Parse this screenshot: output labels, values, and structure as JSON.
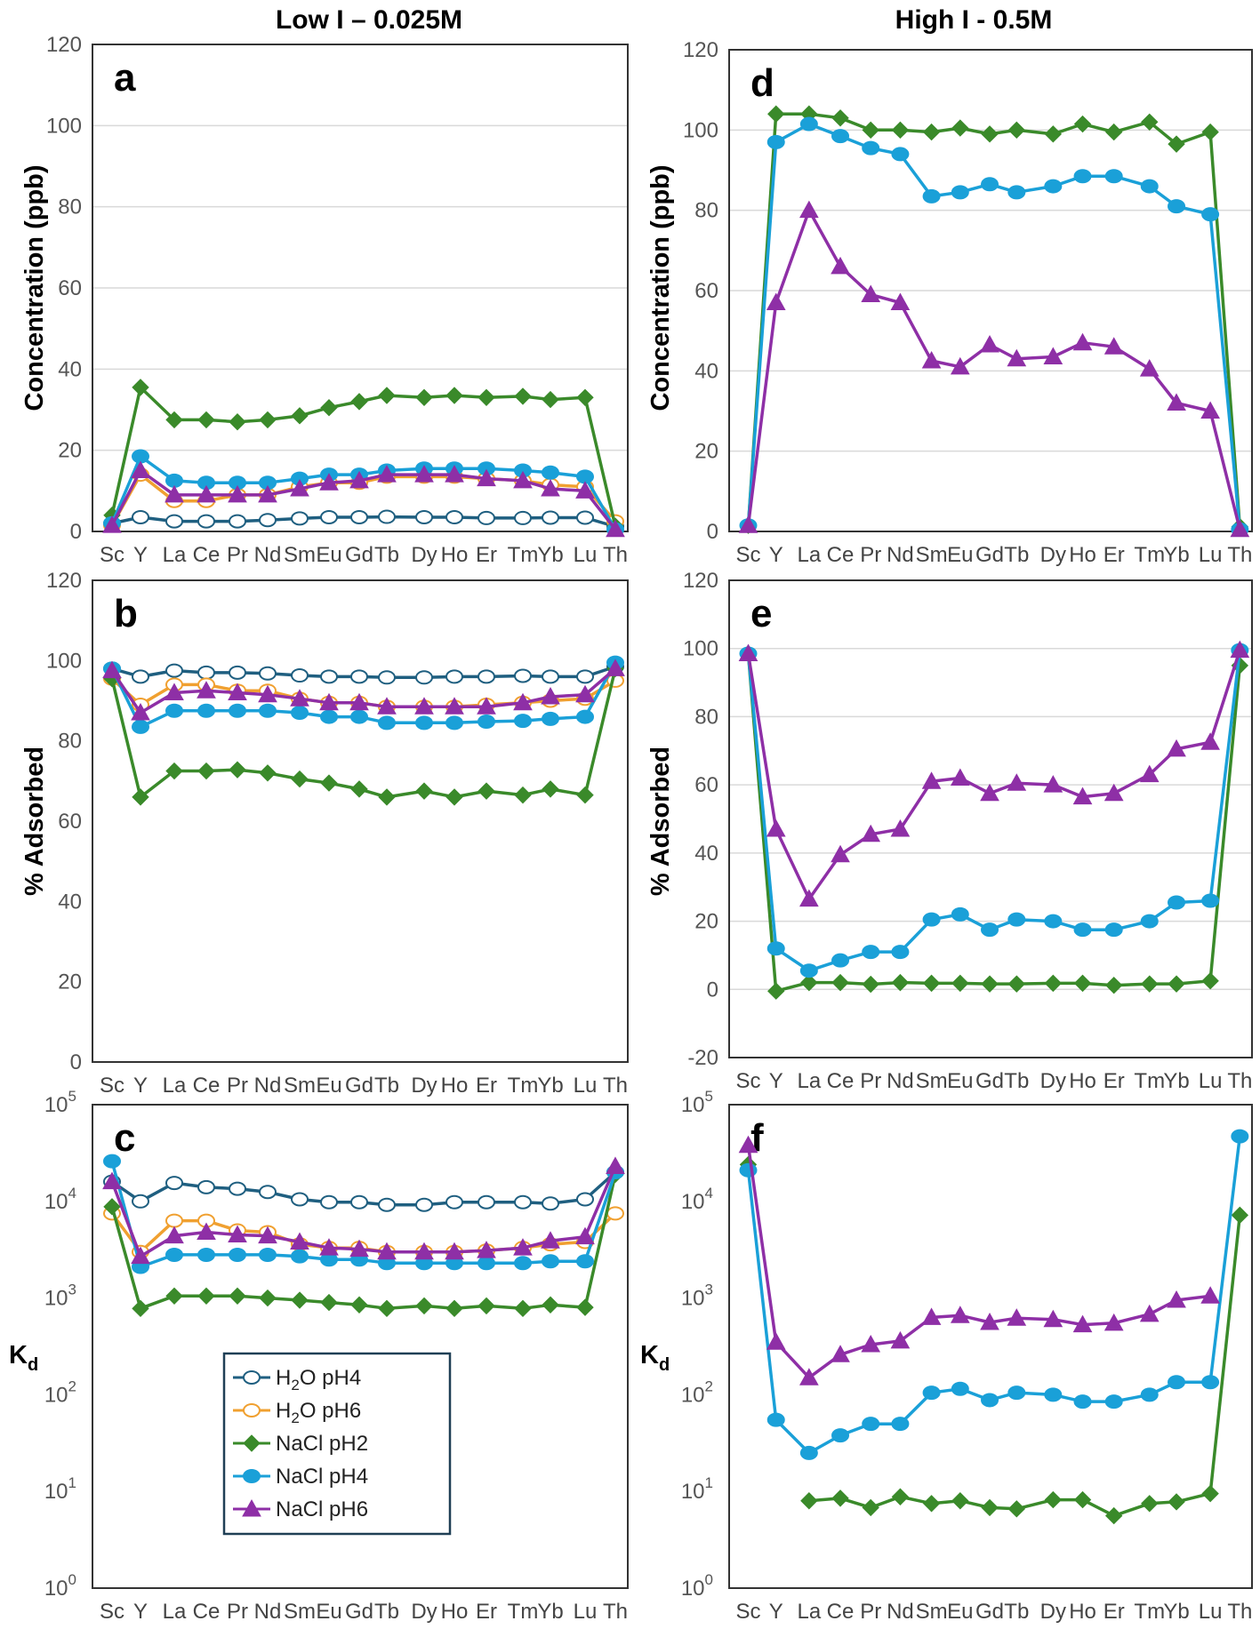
{
  "titles": {
    "left": "Low I – 0.025M",
    "right": "High I - 0.5M"
  },
  "elements": [
    "Sc",
    "Y",
    "La",
    "Ce",
    "Pr",
    "Nd",
    "Sm",
    "Eu",
    "Gd",
    "Tb",
    "Dy",
    "Ho",
    "Er",
    "Tm",
    "Yb",
    "Lu",
    "Th"
  ],
  "series_styles": [
    {
      "name": "H2O pH4",
      "line": "#1f5f80",
      "fill": "#ffffff",
      "marker": "circle-open"
    },
    {
      "name": "H2O pH6",
      "line": "#f0a030",
      "fill": "#ffffff",
      "marker": "circle-open"
    },
    {
      "name": "NaCl pH2",
      "line": "#3a8a2a",
      "fill": "#3a8a2a",
      "marker": "diamond"
    },
    {
      "name": "NaCl pH4",
      "line": "#1aa0d8",
      "fill": "#1aa0d8",
      "marker": "circle"
    },
    {
      "name": "NaCl pH6",
      "line": "#8e2fa6",
      "fill": "#8e2fa6",
      "marker": "triangle"
    }
  ],
  "legend": {
    "placement": "bottom-center of panel c",
    "entries": [
      {
        "pre": "H",
        "sub": "2",
        "post": "O pH4"
      },
      {
        "pre": "H",
        "sub": "2",
        "post": "O pH6"
      },
      {
        "pre": "NaCl pH2",
        "sub": "",
        "post": ""
      },
      {
        "pre": "NaCl pH4",
        "sub": "",
        "post": ""
      },
      {
        "pre": "NaCl pH6",
        "sub": "",
        "post": ""
      }
    ]
  },
  "chart_data": [
    {
      "panel": "a",
      "type": "line",
      "ylabel": "Concentration (ppb)",
      "ylim": [
        0,
        120
      ],
      "yticks": [
        "0",
        "20",
        "40",
        "60",
        "80",
        "100",
        "120"
      ],
      "grid": true,
      "series": [
        {
          "name": "H2O pH4",
          "values": [
            2,
            3.5,
            2.5,
            2.5,
            2.5,
            2.8,
            3.2,
            3.5,
            3.5,
            3.6,
            3.5,
            3.5,
            3.3,
            3.3,
            3.4,
            3.4,
            1.2
          ]
        },
        {
          "name": "H2O pH6",
          "values": [
            1.5,
            14,
            7.5,
            7.5,
            9,
            9,
            11,
            12,
            12,
            13.5,
            13.5,
            13.5,
            13,
            12.5,
            11.5,
            11,
            2.5
          ]
        },
        {
          "name": "NaCl pH2",
          "values": [
            4,
            35.5,
            27.5,
            27.5,
            27,
            27.5,
            28.5,
            30.5,
            32,
            33.5,
            33,
            33.5,
            33,
            33.3,
            32.5,
            33,
            1.3
          ]
        },
        {
          "name": "NaCl pH4",
          "values": [
            2,
            18.5,
            12.5,
            12,
            12,
            12,
            13,
            14,
            14,
            15,
            15.5,
            15.5,
            15.5,
            15,
            14.5,
            13.5,
            0.5
          ]
        },
        {
          "name": "NaCl pH6",
          "values": [
            1.5,
            15,
            9,
            9,
            9,
            9,
            10.5,
            12,
            12.5,
            14,
            14,
            14,
            13,
            12.5,
            10.5,
            10,
            0.5
          ]
        }
      ]
    },
    {
      "panel": "b",
      "type": "line",
      "ylabel": "% Adsorbed",
      "ylim": [
        0,
        120
      ],
      "yticks": [
        "0",
        "20",
        "40",
        "60",
        "80",
        "100",
        "120"
      ],
      "grid": false,
      "series": [
        {
          "name": "H2O pH4",
          "values": [
            98,
            96,
            97.5,
            97,
            97,
            96.8,
            96.3,
            96,
            96,
            95.8,
            95.8,
            96,
            96,
            96.2,
            96,
            96,
            98.5
          ]
        },
        {
          "name": "H2O pH6",
          "values": [
            95.5,
            89,
            94,
            94,
            92.5,
            92.5,
            90.5,
            89.5,
            89.5,
            88.5,
            88.5,
            88.5,
            89,
            89.5,
            90,
            90.5,
            95
          ]
        },
        {
          "name": "NaCl pH2",
          "values": [
            95.5,
            66,
            72.5,
            72.5,
            72.8,
            72,
            70.5,
            69.5,
            68,
            66,
            67.5,
            66,
            67.5,
            66.5,
            68,
            66.5,
            98
          ]
        },
        {
          "name": "NaCl pH4",
          "values": [
            98,
            83.5,
            87.5,
            87.5,
            87.5,
            87.5,
            87,
            86,
            86,
            84.5,
            84.5,
            84.5,
            84.8,
            85,
            85.5,
            86,
            99.5
          ]
        },
        {
          "name": "NaCl pH6",
          "values": [
            97.5,
            87,
            92,
            92.5,
            92,
            91.5,
            90.5,
            89.5,
            89.5,
            88.5,
            88.5,
            88.5,
            88.5,
            89.5,
            91,
            91.5,
            98
          ]
        }
      ]
    },
    {
      "panel": "c",
      "type": "line",
      "ylabel": "Kd",
      "yscale": "log",
      "ylim": [
        1,
        100000
      ],
      "yticks": [
        "10^0",
        "10^1",
        "10^2",
        "10^3",
        "10^4",
        "10^5"
      ],
      "grid": false,
      "series": [
        {
          "name": "H2O pH4",
          "values": [
            16000,
            10000,
            15500,
            14000,
            13500,
            12500,
            10500,
            9800,
            9800,
            9200,
            9200,
            9800,
            9800,
            9800,
            9500,
            10500,
            20000
          ]
        },
        {
          "name": "H2O pH6",
          "values": [
            7500,
            3000,
            6300,
            6300,
            5000,
            4800,
            3600,
            3300,
            3300,
            3000,
            3000,
            3000,
            3100,
            3300,
            3600,
            3800,
            7500
          ]
        },
        {
          "name": "NaCl pH2",
          "values": [
            8800,
            780,
            1050,
            1050,
            1050,
            1000,
            950,
            900,
            850,
            780,
            830,
            780,
            830,
            780,
            850,
            800,
            19000
          ]
        },
        {
          "name": "NaCl pH4",
          "values": [
            26000,
            2100,
            2800,
            2800,
            2800,
            2800,
            2700,
            2500,
            2500,
            2300,
            2300,
            2300,
            2300,
            2300,
            2400,
            2400,
            20000
          ]
        },
        {
          "name": "NaCl pH6",
          "values": [
            16000,
            2700,
            4400,
            4800,
            4500,
            4400,
            3800,
            3300,
            3200,
            3000,
            3000,
            3000,
            3100,
            3300,
            3900,
            4300,
            23000
          ]
        }
      ]
    },
    {
      "panel": "d",
      "type": "line",
      "ylabel": "Concentration (ppb)",
      "ylim": [
        0,
        120
      ],
      "yticks": [
        "0",
        "20",
        "40",
        "60",
        "80",
        "100",
        "120"
      ],
      "grid": true,
      "series": [
        {
          "name": "NaCl pH2",
          "values": [
            1.5,
            104,
            104,
            103,
            100,
            100,
            99.5,
            100.5,
            99,
            100,
            99,
            101.5,
            99.5,
            102,
            96.5,
            99.5,
            1.2
          ]
        },
        {
          "name": "NaCl pH4",
          "values": [
            1.5,
            97,
            101.5,
            98.5,
            95.5,
            94,
            83.5,
            84.5,
            86.5,
            84.5,
            86,
            88.5,
            88.5,
            86,
            81,
            79,
            0.5
          ]
        },
        {
          "name": "NaCl pH6",
          "values": [
            1.5,
            57,
            80,
            66,
            59,
            57,
            42.5,
            41,
            46.5,
            43,
            43.5,
            47,
            46,
            40.5,
            32,
            30,
            0.5
          ]
        }
      ]
    },
    {
      "panel": "e",
      "type": "line",
      "ylabel": "% Adsorbed",
      "ylim": [
        -20,
        120
      ],
      "yticks": [
        "-20",
        "0",
        "20",
        "40",
        "60",
        "80",
        "100",
        "120"
      ],
      "grid": true,
      "series": [
        {
          "name": "NaCl pH2",
          "values": [
            98.5,
            -0.5,
            2,
            2,
            1.5,
            2,
            1.8,
            1.8,
            1.6,
            1.6,
            1.8,
            1.8,
            1.2,
            1.6,
            1.6,
            2.5,
            95
          ]
        },
        {
          "name": "NaCl pH4",
          "values": [
            98.5,
            12,
            5.5,
            8.5,
            11,
            11,
            20.5,
            22,
            17.5,
            20.5,
            20,
            17.5,
            17.5,
            20,
            25.5,
            26,
            99.5
          ]
        },
        {
          "name": "NaCl pH6",
          "values": [
            98.5,
            47,
            26.5,
            39.5,
            45.5,
            47,
            61,
            62,
            57.5,
            60.5,
            60,
            56.5,
            57.5,
            63,
            70.5,
            72.5,
            99.5
          ]
        }
      ]
    },
    {
      "panel": "f",
      "type": "line",
      "ylabel": "Kd",
      "yscale": "log",
      "ylim": [
        1,
        100000
      ],
      "yticks": [
        "10^0",
        "10^1",
        "10^2",
        "10^3",
        "10^4",
        "10^5"
      ],
      "grid": false,
      "series": [
        {
          "name": "NaCl pH2",
          "values": [
            24000,
            null,
            8,
            8.5,
            6.8,
            8.8,
            7.5,
            8,
            6.8,
            6.6,
            8.2,
            8.2,
            5.6,
            7.5,
            7.8,
            9.5,
            7200
          ]
        },
        {
          "name": "NaCl pH4",
          "values": [
            21000,
            55,
            25,
            38,
            50,
            50,
            105,
            115,
            88,
            105,
            100,
            85,
            85,
            100,
            135,
            135,
            47000
          ]
        },
        {
          "name": "NaCl pH6",
          "values": [
            38000,
            350,
            150,
            260,
            330,
            360,
            630,
            660,
            560,
            620,
            600,
            530,
            550,
            680,
            950,
            1050,
            null
          ]
        }
      ]
    }
  ]
}
